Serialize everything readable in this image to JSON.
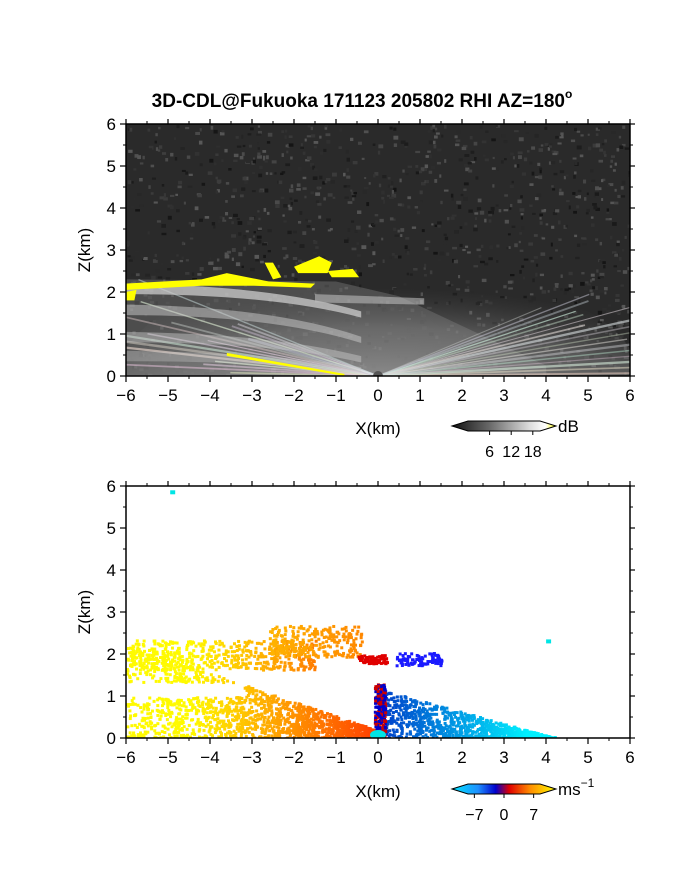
{
  "chart_data": [
    {
      "type": "heatmap",
      "title": "3D-CDL@Fukuoka 171123 205802 RHI AZ=180",
      "title_superscript": "o",
      "xlabel": "X(km)",
      "ylabel": "Z(km)",
      "xlim": [
        -6,
        6
      ],
      "ylim": [
        0,
        6
      ],
      "xticks": [
        -6,
        -5,
        -4,
        -3,
        -2,
        -1,
        0,
        1,
        2,
        3,
        4,
        5,
        6
      ],
      "yticks": [
        0,
        1,
        2,
        3,
        4,
        5,
        6
      ],
      "colorbar": {
        "label": "dB",
        "ticks": [
          6,
          12,
          18
        ],
        "colormap": "grayscale-to-yellow"
      },
      "background_color": "#2a2a2a",
      "highlight_color": "#ffff00"
    },
    {
      "type": "heatmap",
      "xlabel": "X(km)",
      "ylabel": "Z(km)",
      "xlim": [
        -6,
        6
      ],
      "ylim": [
        0,
        6
      ],
      "xticks": [
        -6,
        -5,
        -4,
        -3,
        -2,
        -1,
        0,
        1,
        2,
        3,
        4,
        5,
        6
      ],
      "yticks": [
        0,
        1,
        2,
        3,
        4,
        5,
        6
      ],
      "colorbar": {
        "label": "ms",
        "label_superscript": "−1",
        "ticks": [
          -7,
          0,
          7
        ],
        "tick_labels": [
          "−7",
          "0",
          "7"
        ],
        "colormap": "cyan-blue-red-orange-yellow"
      },
      "stray_points": [
        {
          "x": -4.9,
          "z": 5.85
        },
        {
          "x": 4.05,
          "z": 2.3
        }
      ]
    }
  ]
}
